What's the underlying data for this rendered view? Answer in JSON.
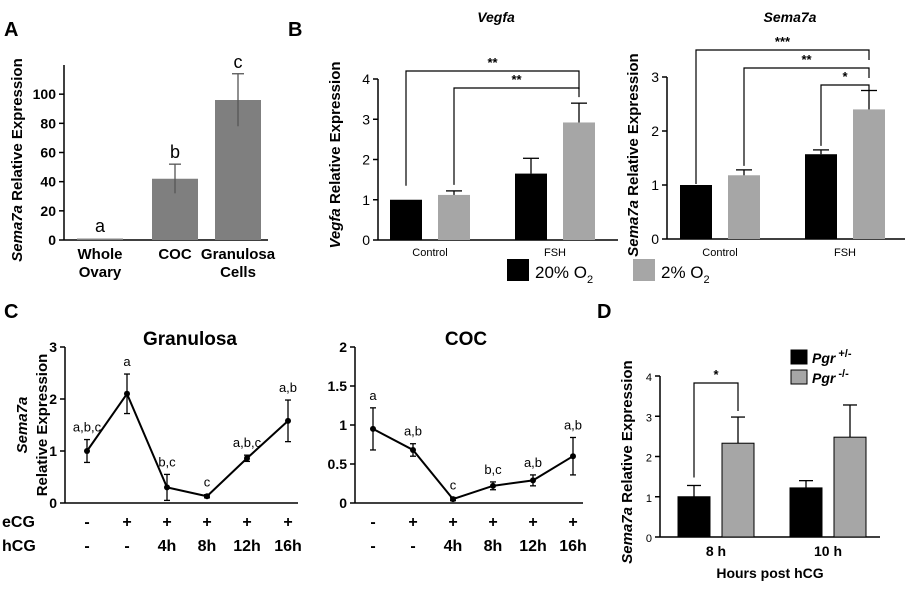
{
  "panels": {
    "A": "A",
    "B": "B",
    "C": "C",
    "D": "D"
  },
  "chart_data": [
    {
      "id": "A",
      "type": "bar",
      "title": "",
      "ylabel_italic": "Sema7a",
      "ylabel_rest": " Relative Expression",
      "categories": [
        [
          "Whole",
          "Ovary"
        ],
        [
          "COC"
        ],
        [
          "Granulosa",
          "Cells"
        ]
      ],
      "values": [
        1,
        42,
        96
      ],
      "errors": [
        0.5,
        10,
        18
      ],
      "letters": [
        "a",
        "b",
        "c"
      ],
      "yticks": [
        "0",
        "20",
        "40",
        "60",
        "80",
        "100"
      ],
      "ylim": [
        0,
        120
      ],
      "color": "#7f7f7f"
    },
    {
      "id": "B-Vegfa",
      "type": "bar",
      "title": "Vegfa",
      "ylabel_italic": "Vegfa",
      "ylabel_rest": " Relative Expression",
      "categories": [
        "Control",
        "FSH"
      ],
      "series": [
        {
          "name": "20% O2",
          "values": [
            1.0,
            1.65
          ],
          "errors": [
            0,
            0.38
          ],
          "color": "#000000"
        },
        {
          "name": "2% O2",
          "values": [
            1.12,
            2.92
          ],
          "errors": [
            0.1,
            0.48
          ],
          "color": "#a6a6a6"
        }
      ],
      "yticks": [
        "0",
        "1",
        "2",
        "3",
        "4"
      ],
      "ylim": [
        0,
        4
      ],
      "significance": [
        "**",
        "**"
      ]
    },
    {
      "id": "B-Sema7a",
      "type": "bar",
      "title": "Sema7a",
      "ylabel_italic": "Sema7a",
      "ylabel_rest": " Relative Expression",
      "categories": [
        "Control",
        "FSH"
      ],
      "series": [
        {
          "name": "20% O2",
          "values": [
            1.0,
            1.57
          ],
          "errors": [
            0,
            0.08
          ],
          "color": "#000000"
        },
        {
          "name": "2% O2",
          "values": [
            1.18,
            2.4
          ],
          "errors": [
            0.1,
            0.35
          ],
          "color": "#a6a6a6"
        }
      ],
      "yticks": [
        "0",
        "1",
        "2",
        "3"
      ],
      "ylim": [
        0,
        3
      ],
      "significance": [
        "***",
        "**",
        "*"
      ]
    },
    {
      "id": "C-Granulosa",
      "type": "line",
      "title": "Granulosa",
      "ylabel_italic": "Sema7a",
      "ylabel_rest": "Relative Expression",
      "x": [
        "-",
        "-",
        "4h",
        "8h",
        "12h",
        "16h"
      ],
      "values": [
        1.0,
        2.1,
        0.3,
        0.13,
        0.86,
        1.58
      ],
      "errors": [
        0.22,
        0.38,
        0.25,
        0.03,
        0.06,
        0.4
      ],
      "letters": [
        "a,b,c",
        "a",
        "b,c",
        "c",
        "a,b,c",
        "a,b"
      ],
      "yticks": [
        "0",
        "1",
        "2",
        "3"
      ],
      "ylim": [
        0,
        3
      ]
    },
    {
      "id": "C-COC",
      "type": "line",
      "title": "COC",
      "x": [
        "-",
        "-",
        "4h",
        "8h",
        "12h",
        "16h"
      ],
      "values": [
        0.95,
        0.68,
        0.05,
        0.22,
        0.29,
        0.6
      ],
      "errors": [
        0.27,
        0.08,
        0.02,
        0.05,
        0.07,
        0.24
      ],
      "letters": [
        "a",
        "a,b",
        "c",
        "b,c",
        "a,b",
        "a,b"
      ],
      "yticks": [
        "0",
        "0.5",
        "1",
        "1.5",
        "2"
      ],
      "ylim": [
        0,
        2
      ]
    },
    {
      "id": "D",
      "type": "bar",
      "title": "",
      "ylabel_italic": "Sema7a",
      "ylabel_rest": " Relative Expression",
      "xlabel": "Hours post hCG",
      "categories": [
        "8 h",
        "10 h"
      ],
      "series": [
        {
          "name": "Pgr +/-",
          "values": [
            1.0,
            1.22
          ],
          "errors": [
            0.28,
            0.18
          ],
          "color": "#000000"
        },
        {
          "name": "Pgr -/-",
          "values": [
            2.33,
            2.48
          ],
          "errors": [
            0.65,
            0.8
          ],
          "color": "#a6a6a6"
        }
      ],
      "yticks": [
        "0",
        "1",
        "2",
        "3",
        "4"
      ],
      "ylim": [
        0,
        4
      ],
      "significance": [
        "*"
      ]
    }
  ],
  "legendB": {
    "items": [
      {
        "label": "20% O",
        "sub": "2",
        "color": "#000000"
      },
      {
        "label": "2% O",
        "sub": "2",
        "color": "#a6a6a6"
      }
    ]
  },
  "legendD": {
    "items": [
      {
        "italic": "Pgr",
        "sup": "+/-",
        "color": "#000000"
      },
      {
        "italic": "Pgr",
        "sup": "-/-",
        "color": "#a6a6a6"
      }
    ]
  },
  "treatment": {
    "ecg_label": "eCG",
    "hcg_label": "hCG",
    "ecg": [
      "-",
      "+",
      "+",
      "+",
      "+",
      "+"
    ],
    "hcg": [
      "-",
      "-",
      "4h",
      "8h",
      "12h",
      "16h"
    ]
  }
}
